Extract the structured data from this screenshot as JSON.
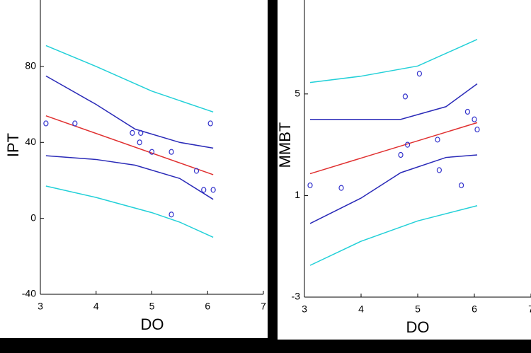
{
  "chart_data": [
    {
      "type": "scatter",
      "x_label": "DO",
      "y_label": "IPT",
      "x": [
        3.1,
        3.62,
        4.65,
        4.8,
        4.78,
        5.0,
        5.35,
        5.35,
        5.8,
        5.93,
        6.05,
        6.1
      ],
      "values": [
        50,
        50,
        45,
        45,
        40,
        35,
        35,
        2,
        25,
        15,
        50,
        15
      ],
      "color": "#3333cc",
      "lines": [
        {
          "color": "#e03030",
          "x": [
            3.1,
            6.1
          ],
          "values": [
            54,
            23
          ]
        },
        {
          "color": "#2a2ab8",
          "x": [
            3.1,
            4,
            4.7,
            5.5,
            6.1
          ],
          "values": [
            75,
            60,
            47,
            40,
            37
          ]
        },
        {
          "color": "#2a2ab8",
          "x": [
            3.1,
            4,
            4.7,
            5.5,
            6.1
          ],
          "values": [
            33,
            31,
            28,
            21,
            10
          ]
        },
        {
          "color": "#22d0d8",
          "x": [
            3.1,
            4,
            5,
            6.1
          ],
          "values": [
            91,
            80,
            67,
            56
          ]
        },
        {
          "color": "#22d0d8",
          "x": [
            3.1,
            4,
            5,
            5.5,
            6.1
          ],
          "values": [
            17,
            11,
            3,
            -2,
            -10
          ]
        }
      ],
      "xlim": [
        3,
        7
      ],
      "xticks": [
        3,
        4,
        5,
        6,
        7
      ],
      "ylim": [
        -40,
        115
      ],
      "yticks": [
        -40,
        0,
        40,
        80
      ]
    },
    {
      "type": "scatter",
      "x_label": "DO",
      "y_label": "MMBT",
      "x": [
        3.1,
        3.65,
        4.7,
        4.78,
        4.82,
        5.03,
        5.35,
        5.38,
        5.77,
        5.88,
        6.0,
        6.05
      ],
      "values": [
        1.4,
        1.3,
        2.6,
        4.9,
        3.0,
        5.8,
        3.2,
        2.0,
        1.4,
        4.3,
        4.0,
        3.6
      ],
      "color": "#3333cc",
      "lines": [
        {
          "color": "#e03030",
          "x": [
            3.1,
            6.05
          ],
          "values": [
            1.86,
            3.87
          ]
        },
        {
          "color": "#2a2ab8",
          "x": [
            3.1,
            4,
            4.7,
            5.5,
            6.05
          ],
          "values": [
            4.0,
            4.0,
            4.0,
            4.5,
            5.4
          ]
        },
        {
          "color": "#2a2ab8",
          "x": [
            3.1,
            4,
            4.7,
            5.5,
            6.05
          ],
          "values": [
            -0.1,
            0.9,
            1.9,
            2.5,
            2.6
          ]
        },
        {
          "color": "#22d0d8",
          "x": [
            3.1,
            4,
            5,
            6.05
          ],
          "values": [
            5.45,
            5.7,
            6.1,
            7.15
          ]
        },
        {
          "color": "#22d0d8",
          "x": [
            3.1,
            4,
            5,
            6.05
          ],
          "values": [
            -1.75,
            -0.8,
            0,
            0.6
          ]
        }
      ],
      "xlim": [
        3,
        7
      ],
      "xticks": [
        3,
        4,
        5,
        6,
        7
      ],
      "ylim": [
        -3,
        8.7
      ],
      "yticks": [
        -3,
        1,
        5
      ]
    }
  ]
}
